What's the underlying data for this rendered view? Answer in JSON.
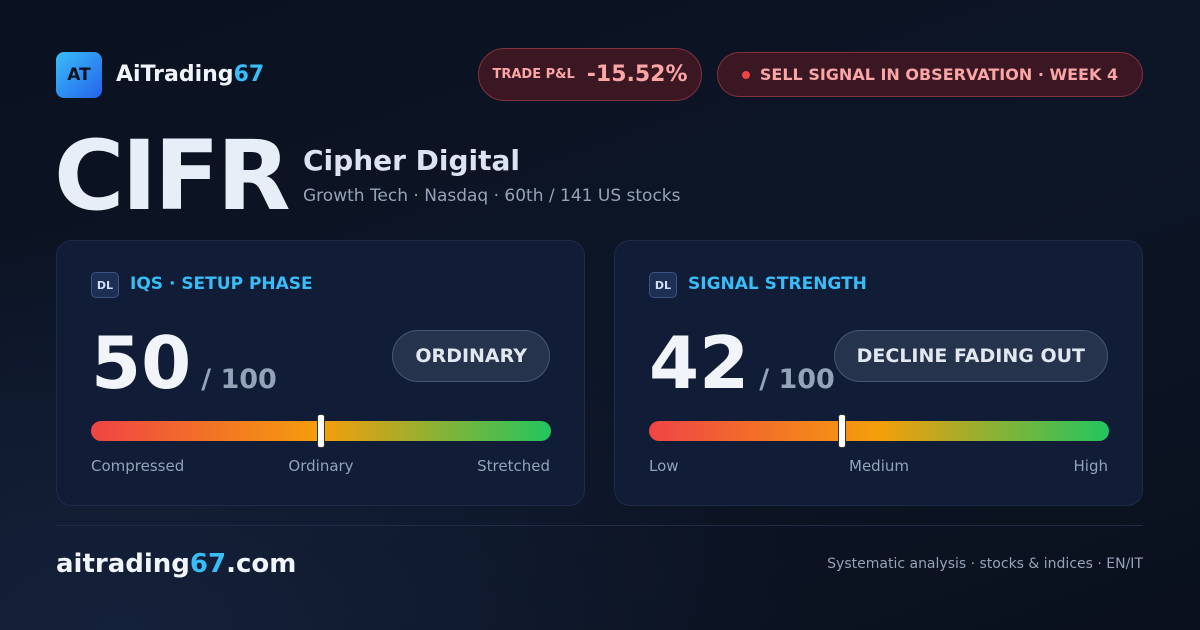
{
  "header": {
    "logo": "AT",
    "brand": "AiTrading",
    "brand_suffix": "67",
    "pnl_label": "TRADE P&L",
    "pnl": "-15.52%",
    "signal": "SELL SIGNAL IN OBSERVATION · WEEK 4"
  },
  "stock": {
    "ticker": "CIFR",
    "name": "Cipher Digital",
    "details": "Growth Tech · Nasdaq · 60th / 141 US stocks"
  },
  "cards": [
    {
      "badge": "DL",
      "title": "IQS · SETUP PHASE",
      "score": 50,
      "divider": "/",
      "max": 100,
      "status": "ORDINARY",
      "scale_labels": [
        "Compressed",
        "Ordinary",
        "Stretched"
      ]
    },
    {
      "badge": "DL",
      "title": "SIGNAL STRENGTH",
      "score": 42,
      "divider": "/",
      "max": 100,
      "status": "DECLINE FADING OUT",
      "scale_labels": [
        "Low",
        "Medium",
        "High"
      ]
    }
  ],
  "footer": {
    "domain": "aitrading",
    "domain_num": "67",
    "domain_tld": ".com",
    "tagline": "Systematic analysis · stocks & indices · EN/IT"
  }
}
